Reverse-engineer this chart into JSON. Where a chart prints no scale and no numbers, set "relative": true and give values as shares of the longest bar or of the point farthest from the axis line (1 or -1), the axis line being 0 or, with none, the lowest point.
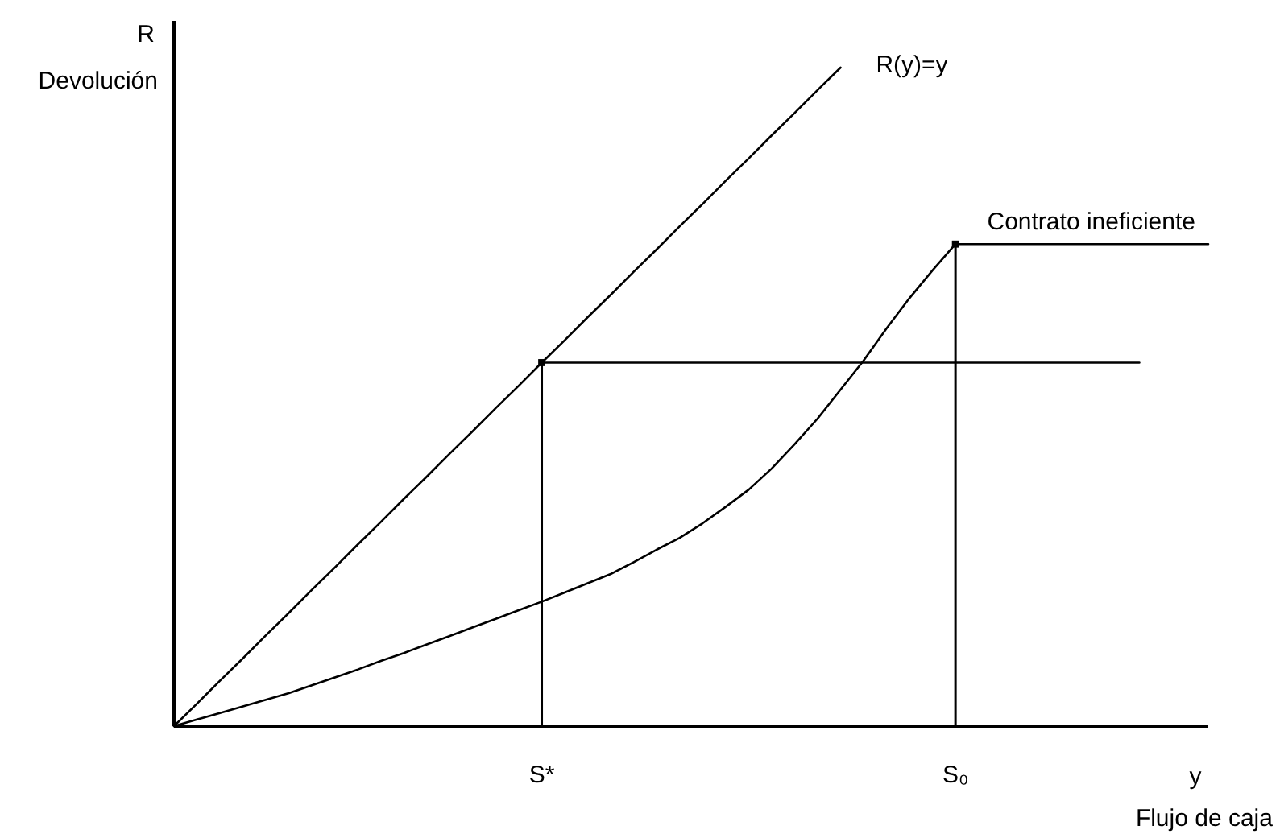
{
  "chart_data": {
    "type": "line",
    "relative": true,
    "xlabel": "y",
    "ylabel": "R",
    "annotations": [
      "Devolución",
      "Flujo de caja"
    ],
    "categories": [
      null,
      null,
      null,
      null,
      null,
      null,
      null,
      null,
      null,
      null,
      null,
      null,
      null,
      null,
      null,
      null,
      "S*",
      null,
      null,
      null,
      null,
      null,
      null,
      null,
      null,
      null,
      null,
      null,
      null,
      null,
      null,
      null,
      null,
      null,
      "S₀",
      null,
      null,
      null,
      null,
      null,
      null,
      null,
      null,
      null,
      null,
      null
    ],
    "series": [
      {
        "name": "R(y)=y",
        "color": "#000000",
        "values": [
          0,
          0.034,
          0.069,
          0.103,
          0.138,
          0.172,
          0.207,
          0.241,
          0.276,
          0.31,
          0.345,
          0.379,
          0.414,
          0.448,
          0.483,
          0.517,
          0.552,
          0.586,
          0.621,
          0.655,
          0.69,
          0.724,
          0.759,
          0.793,
          0.828,
          0.862,
          0.897,
          0.931,
          0.966,
          1,
          null,
          null,
          null,
          null,
          null,
          null,
          null,
          null,
          null,
          null,
          null,
          null,
          null,
          null,
          null,
          null
        ]
      },
      {
        "color": "#000000",
        "values": [
          null,
          null,
          null,
          null,
          null,
          null,
          null,
          null,
          null,
          null,
          null,
          null,
          null,
          null,
          null,
          null,
          0.552,
          0.552,
          0.552,
          0.552,
          0.552,
          0.552,
          0.552,
          0.552,
          0.552,
          0.552,
          0.552,
          0.552,
          0.552,
          0.552,
          0.552,
          0.552,
          0.552,
          0.552,
          0.552,
          0.552,
          0.552,
          0.552,
          0.552,
          0.552,
          0.552,
          0.552,
          0.552,
          null,
          null,
          null
        ]
      },
      {
        "name": "Contrato ineficiente",
        "color": "#000000",
        "values": [
          0,
          0.01,
          0.02,
          0.03,
          0.04,
          0.05,
          0.062,
          0.074,
          0.086,
          0.099,
          0.111,
          0.124,
          0.137,
          0.15,
          0.163,
          0.176,
          0.189,
          0.203,
          0.217,
          0.231,
          0.249,
          0.268,
          0.286,
          0.308,
          0.333,
          0.359,
          0.391,
          0.428,
          0.467,
          0.511,
          0.555,
          0.604,
          0.65,
          0.692,
          0.732,
          0.732,
          0.732,
          0.732,
          0.732,
          0.732,
          0.732,
          0.732,
          0.732,
          0.732,
          0.732,
          0.732
        ]
      },
      {
        "type": "lollipop",
        "marker": "square",
        "color": "#000000",
        "values": [
          null,
          null,
          null,
          null,
          null,
          null,
          null,
          null,
          null,
          null,
          null,
          null,
          null,
          null,
          null,
          null,
          0.552,
          null,
          null,
          null,
          null,
          null,
          null,
          null,
          null,
          null,
          null,
          null,
          null,
          null,
          null,
          null,
          null,
          null,
          0.732,
          null,
          null,
          null,
          null,
          null,
          null,
          null,
          null,
          null,
          null,
          null
        ]
      }
    ]
  }
}
